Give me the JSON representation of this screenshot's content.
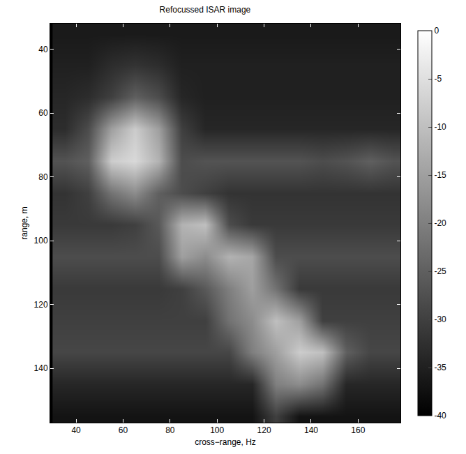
{
  "chart_data": {
    "type": "heatmap",
    "title": "Refocussed ISAR image",
    "x_label": "cross−range, Hz",
    "y_label": "range, m",
    "xlim": [
      29,
      178
    ],
    "ylim": [
      157,
      32
    ],
    "xticks": [
      40,
      60,
      80,
      100,
      120,
      140,
      160
    ],
    "yticks": [
      40,
      60,
      80,
      100,
      120,
      140
    ],
    "x": [
      35,
      45,
      55,
      65,
      75,
      85,
      95,
      105,
      115,
      125,
      135,
      145,
      155,
      165,
      175
    ],
    "y": [
      35,
      45,
      55,
      65,
      75,
      85,
      95,
      105,
      115,
      125,
      135,
      145,
      155
    ],
    "z": [
      [
        -36,
        -36,
        -36,
        -36,
        -36,
        -36,
        -36,
        -36,
        -36,
        -36,
        -36,
        -36,
        -36,
        -36,
        -36
      ],
      [
        -35,
        -35,
        -33,
        -32,
        -33,
        -35,
        -35,
        -35,
        -35,
        -35,
        -35,
        -35,
        -35,
        -35,
        -35
      ],
      [
        -34,
        -33,
        -30,
        -25,
        -28,
        -34,
        -35,
        -35,
        -35,
        -35,
        -35,
        -35,
        -35,
        -35,
        -35
      ],
      [
        -33,
        -28,
        -15,
        -8,
        -15,
        -30,
        -34,
        -34,
        -34,
        -34,
        -34,
        -34,
        -34,
        -34,
        -34
      ],
      [
        -27,
        -25,
        -8,
        -6,
        -12,
        -28,
        -27,
        -27,
        -27,
        -27,
        -27,
        -28,
        -27,
        -25,
        -27
      ],
      [
        -32,
        -30,
        -22,
        -18,
        -25,
        -28,
        -30,
        -32,
        -32,
        -32,
        -32,
        -32,
        -32,
        -32,
        -32
      ],
      [
        -31,
        -31,
        -31,
        -30,
        -26,
        -12,
        -10,
        -28,
        -31,
        -31,
        -31,
        -31,
        -31,
        -31,
        -31
      ],
      [
        -28,
        -28,
        -28,
        -28,
        -28,
        -15,
        -18,
        -12,
        -14,
        -28,
        -28,
        -28,
        -28,
        -28,
        -28
      ],
      [
        -31,
        -31,
        -31,
        -31,
        -31,
        -30,
        -26,
        -20,
        -15,
        -22,
        -31,
        -31,
        -31,
        -31,
        -31
      ],
      [
        -30,
        -30,
        -30,
        -30,
        -30,
        -30,
        -30,
        -22,
        -18,
        -10,
        -15,
        -30,
        -30,
        -30,
        -30
      ],
      [
        -29,
        -29,
        -29,
        -29,
        -29,
        -29,
        -29,
        -29,
        -20,
        -15,
        -8,
        -10,
        -25,
        -29,
        -29
      ],
      [
        -34,
        -34,
        -34,
        -34,
        -34,
        -34,
        -34,
        -34,
        -34,
        -20,
        -18,
        -22,
        -34,
        -34,
        -34
      ],
      [
        -37,
        -37,
        -37,
        -37,
        -37,
        -37,
        -37,
        -37,
        -37,
        -30,
        -37,
        -37,
        -37,
        -37,
        -37
      ]
    ],
    "colorbar_range": [
      -40,
      0
    ],
    "colorbar_ticks": [
      0,
      -5,
      -10,
      -15,
      -20,
      -25,
      -30,
      -35,
      -40
    ],
    "color": "gray"
  }
}
